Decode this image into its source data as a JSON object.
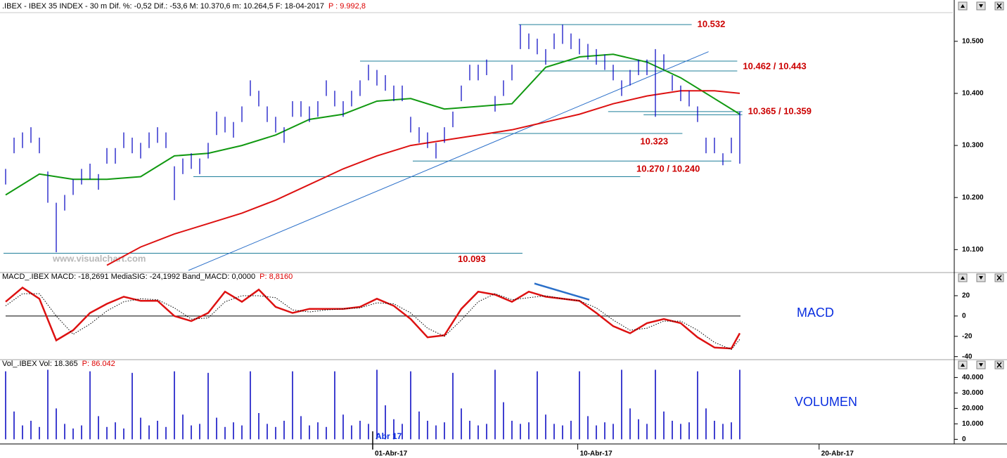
{
  "chart_data": [
    {
      "type": "ohlc",
      "title": ".IBEX - IBEX 35 INDEX - 30 m Dif. %: -0,52 Dif.: -53,6 M: 10.370,6 m: 10.264,5 F: 18-04-2017",
      "subtitle": "P : 9.992,8",
      "watermark": "www.visualchart.com",
      "xlim": [
        0,
        112.25
      ],
      "ylim": [
        10.06,
        10.555
      ],
      "yticks": [
        {
          "value": 10.1,
          "label": "10.100"
        },
        {
          "value": 10.2,
          "label": "10.200"
        },
        {
          "value": 10.3,
          "label": "10.300"
        },
        {
          "value": 10.4,
          "label": "10.400"
        },
        {
          "value": 10.5,
          "label": "10.500"
        }
      ],
      "color": "#0000c0",
      "high": [
        10.255,
        10.315,
        10.325,
        10.335,
        10.315,
        10.25,
        10.19,
        10.205,
        10.235,
        10.255,
        10.265,
        10.245,
        10.295,
        10.295,
        10.325,
        10.315,
        10.305,
        10.325,
        10.335,
        10.325,
        10.26,
        10.275,
        10.285,
        10.275,
        10.305,
        10.365,
        10.355,
        10.345,
        10.375,
        10.425,
        10.405,
        10.375,
        10.355,
        10.335,
        10.385,
        10.385,
        10.375,
        10.385,
        10.425,
        10.405,
        10.385,
        10.405,
        10.425,
        10.455,
        10.445,
        10.435,
        10.415,
        10.415,
        10.355,
        10.335,
        10.325,
        10.305,
        10.335,
        10.365,
        10.415,
        10.455,
        10.455,
        10.465,
        10.395,
        10.425,
        10.455,
        10.532,
        10.515,
        10.505,
        10.485,
        10.515,
        10.532,
        10.515,
        10.505,
        10.495,
        10.485,
        10.475,
        10.455,
        10.425,
        10.445,
        10.465,
        10.465,
        10.485,
        10.475,
        10.435,
        10.415,
        10.405,
        10.375,
        10.315,
        10.315,
        10.285,
        10.315,
        10.365
      ],
      "low": [
        10.225,
        10.285,
        10.295,
        10.305,
        10.285,
        10.19,
        10.095,
        10.175,
        10.205,
        10.225,
        10.235,
        10.215,
        10.265,
        10.265,
        10.295,
        10.285,
        10.275,
        10.295,
        10.305,
        10.295,
        10.195,
        10.245,
        10.255,
        10.245,
        10.275,
        10.32,
        10.325,
        10.315,
        10.345,
        10.395,
        10.375,
        10.345,
        10.325,
        10.305,
        10.355,
        10.355,
        10.345,
        10.355,
        10.395,
        10.375,
        10.355,
        10.375,
        10.395,
        10.425,
        10.415,
        10.405,
        10.385,
        10.385,
        10.325,
        10.305,
        10.295,
        10.275,
        10.305,
        10.335,
        10.385,
        10.425,
        10.425,
        10.435,
        10.365,
        10.395,
        10.425,
        10.485,
        10.485,
        10.475,
        10.455,
        10.485,
        10.495,
        10.485,
        10.475,
        10.465,
        10.455,
        10.445,
        10.425,
        10.395,
        10.415,
        10.435,
        10.435,
        10.355,
        10.445,
        10.405,
        10.385,
        10.375,
        10.345,
        10.285,
        10.285,
        10.262,
        10.285,
        10.265
      ],
      "series": [
        {
          "color": "#119911",
          "x": [
            0,
            4,
            8,
            12,
            16,
            20,
            24,
            28,
            32,
            36,
            40,
            44,
            48,
            52,
            56,
            60,
            64,
            68,
            72,
            76,
            80,
            84,
            87
          ],
          "values": [
            10.205,
            10.245,
            10.235,
            10.235,
            10.24,
            10.28,
            10.285,
            10.3,
            10.32,
            10.35,
            10.36,
            10.385,
            10.39,
            10.37,
            10.375,
            10.38,
            10.45,
            10.47,
            10.475,
            10.46,
            10.43,
            10.39,
            10.36
          ]
        },
        {
          "color": "#dd1111",
          "x": [
            12,
            16,
            20,
            24,
            28,
            32,
            36,
            40,
            44,
            48,
            52,
            56,
            60,
            64,
            68,
            72,
            76,
            80,
            84,
            87
          ],
          "values": [
            10.07,
            10.105,
            10.13,
            10.15,
            10.17,
            10.195,
            10.225,
            10.255,
            10.28,
            10.3,
            10.31,
            10.32,
            10.33,
            10.345,
            10.36,
            10.38,
            10.395,
            10.405,
            10.405,
            10.4
          ]
        }
      ],
      "levels": [
        {
          "label": "10.532",
          "lines": [
            {
              "value": 10.532,
              "x": [
                60.8,
                81.3
              ]
            }
          ]
        },
        {
          "label": "10.462 / 10.443",
          "lines": [
            {
              "value": 10.462,
              "x": [
                42,
                86.7
              ]
            },
            {
              "value": 10.443,
              "x": [
                62.7,
                86.7
              ]
            }
          ]
        },
        {
          "label": "10.365 / 10.359",
          "lines": [
            {
              "value": 10.365,
              "x": [
                71.4,
                87.3
              ]
            },
            {
              "value": 10.359,
              "x": [
                75.6,
                87.3
              ]
            }
          ]
        },
        {
          "label": "10.323",
          "lines": [
            {
              "value": 10.323,
              "x": [
                57.7,
                80.2
              ]
            }
          ]
        },
        {
          "label": "10.270 / 10.240",
          "lines": [
            {
              "value": 10.27,
              "x": [
                48.25,
                86
              ]
            },
            {
              "value": 10.24,
              "x": [
                22.25,
                75.2
              ]
            }
          ]
        },
        {
          "label": "10.093",
          "lines": [
            {
              "value": 10.093,
              "x": [
                -0.25,
                61.25
              ]
            }
          ]
        }
      ],
      "trendline": {
        "x": [
          21.67,
          83.3
        ],
        "values": [
          10.06,
          10.48
        ]
      }
    },
    {
      "type": "line",
      "title": "MACD_.IBEX MACD: -18,2691 MediaSIG: -24,1992 Band_MACD: 0,0000",
      "subtitle": "P: 8,8160",
      "label": "MACD",
      "ylim": [
        -43,
        34.5
      ],
      "yticks": [
        -40,
        -20,
        0,
        20
      ],
      "zero_line": 0,
      "x": [
        0,
        2,
        4,
        6,
        8,
        10,
        12,
        14,
        16,
        18,
        20,
        22,
        24,
        26,
        28,
        30,
        32,
        34,
        36,
        38,
        40,
        42,
        44,
        46,
        48,
        50,
        52,
        54,
        56,
        58,
        60,
        62,
        64,
        66,
        68,
        70,
        72,
        74,
        76,
        78,
        80,
        82,
        84,
        86,
        87
      ],
      "series": [
        {
          "color": "#dd1111",
          "values": [
            14,
            28,
            17,
            -24,
            -14,
            3,
            12,
            19,
            15,
            15,
            0,
            -5,
            3,
            24,
            14,
            26,
            9,
            3,
            7,
            7,
            7,
            9,
            17,
            10,
            -3,
            -21,
            -19,
            7,
            24,
            21,
            14,
            24,
            19,
            17,
            15,
            3,
            -10,
            -17,
            -7,
            -3,
            -7,
            -21,
            -31,
            -32,
            -17
          ]
        },
        {
          "color": "#000000",
          "dashed": true,
          "values": [
            10,
            22,
            22,
            0,
            -18,
            -8,
            5,
            14,
            17,
            16,
            8,
            -3,
            -2,
            14,
            20,
            20,
            18,
            6,
            4,
            6,
            7,
            8,
            13,
            12,
            3,
            -12,
            -20,
            -4,
            14,
            22,
            16,
            18,
            20,
            17,
            15,
            8,
            -4,
            -14,
            -12,
            -5,
            -5,
            -14,
            -26,
            -33,
            -23
          ]
        }
      ],
      "divergence": {
        "x": [
          62.67,
          69.17
        ],
        "values": [
          32,
          16
        ]
      }
    },
    {
      "type": "bar",
      "title": "Vol_.IBEX Vol: 18.365",
      "subtitle": "P: 86.042",
      "label": "VOLUMEN",
      "color": "#0000c0",
      "ylim": [
        -3000,
        47000
      ],
      "yticks": [
        0,
        {
          "value": 10000,
          "label": "10.000"
        },
        {
          "value": 20000,
          "label": "20.000"
        },
        {
          "value": 30000,
          "label": "30.000"
        },
        {
          "value": 40000,
          "label": "40.000"
        }
      ],
      "values": [
        44000,
        18000,
        9000,
        12000,
        8000,
        45000,
        20000,
        10000,
        7000,
        9000,
        44000,
        15000,
        8000,
        11000,
        7000,
        43000,
        14000,
        9000,
        12000,
        8000,
        44000,
        16000,
        9000,
        10000,
        43000,
        14000,
        8000,
        11000,
        9000,
        44000,
        17000,
        10000,
        8000,
        12000,
        44000,
        15000,
        9000,
        11000,
        8000,
        44000,
        16000,
        9000,
        12000,
        10000,
        45000,
        22000,
        13000,
        10000,
        44000,
        18000,
        12000,
        9000,
        11000,
        43000,
        20000,
        12000,
        9000,
        10000,
        45000,
        24000,
        12000,
        10000,
        11000,
        44000,
        16000,
        10000,
        9000,
        12000,
        44000,
        15000,
        9000,
        11000,
        10000,
        45000,
        20000,
        13000,
        10000,
        45000,
        18000,
        12000,
        10000,
        11000,
        44000,
        20000,
        12000,
        10000,
        11000,
        45000
      ],
      "xticks": [
        {
          "value": 43.5,
          "label": "01-Abr-17"
        },
        {
          "value": 67.8,
          "label": "10-Abr-17"
        },
        {
          "value": 96.4,
          "label": "20-Abr-17"
        }
      ],
      "overlay": "Abr 17"
    }
  ]
}
